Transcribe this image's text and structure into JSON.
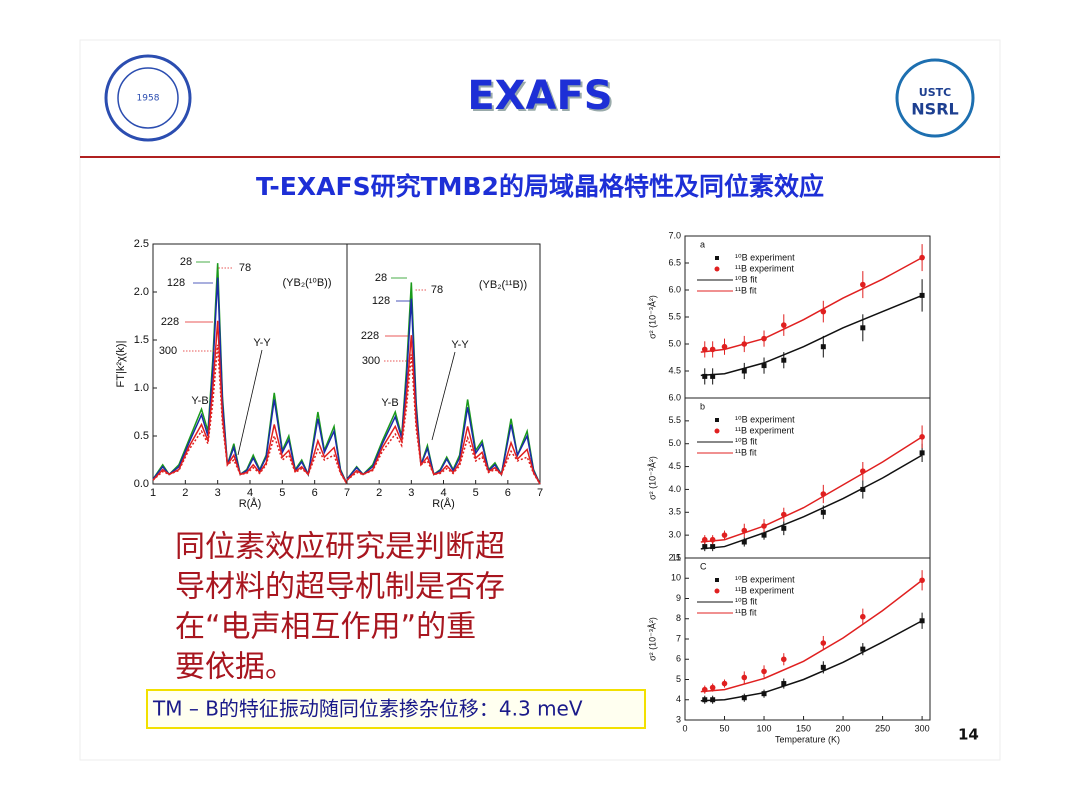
{
  "header": {
    "title": "EXAFS",
    "subtitle": "T-EXAFS研究TMB2的局域晶格特性及同位素效应",
    "logos": [
      "1958",
      "USTC",
      "NSRL"
    ]
  },
  "body": {
    "lines": [
      "同位素效应研究是判断超",
      "导材料的超导机制是否存",
      "在“电声相互作用”的重",
      "要依据。"
    ],
    "callout": "TM – B的特征振动随同位素掺杂位移：4.3 meV",
    "page_number": "14"
  },
  "chart_data": [
    {
      "type": "line",
      "ylabel": "FT|k²χ(k)|",
      "xlabel": "R(Å)",
      "xlim": [
        1,
        7
      ],
      "ylim": [
        0,
        2.5
      ],
      "xticks": [
        1,
        2,
        3,
        4,
        5,
        6,
        7
      ],
      "yticks": [
        {
          "value": 0,
          "label": "0.0"
        },
        0.5,
        {
          "value": 1,
          "label": "1.0"
        },
        1.5,
        {
          "value": 2,
          "label": "2.0"
        },
        2.5
      ],
      "x": [
        1.0,
        1.3,
        1.5,
        1.8,
        2.1,
        2.5,
        2.7,
        2.85,
        3.0,
        3.15,
        3.3,
        3.5,
        3.7,
        3.9,
        4.1,
        4.3,
        4.5,
        4.75,
        5.0,
        5.2,
        5.4,
        5.6,
        5.8,
        6.1,
        6.3,
        6.6,
        6.8,
        7.0
      ],
      "annotations": [
        "28",
        "78",
        "128",
        "228",
        "300",
        "Y-B",
        "Y-Y",
        "(YB₂(¹⁰B))"
      ],
      "series": [
        {
          "color": "#1a9a1a",
          "dash": false,
          "values": [
            0.05,
            0.2,
            0.1,
            0.2,
            0.45,
            0.78,
            0.55,
            1.3,
            2.3,
            0.9,
            0.2,
            0.42,
            0.1,
            0.15,
            0.3,
            0.15,
            0.3,
            0.95,
            0.35,
            0.5,
            0.15,
            0.25,
            0.1,
            0.75,
            0.35,
            0.6,
            0.15,
            0.0
          ]
        },
        {
          "color": "#1a2aa8",
          "dash": false,
          "values": [
            0.05,
            0.18,
            0.1,
            0.18,
            0.42,
            0.72,
            0.5,
            1.2,
            2.15,
            0.85,
            0.2,
            0.38,
            0.1,
            0.14,
            0.27,
            0.14,
            0.28,
            0.88,
            0.33,
            0.46,
            0.14,
            0.23,
            0.1,
            0.68,
            0.33,
            0.55,
            0.14,
            0.0
          ]
        },
        {
          "color": "#e02020",
          "dash": false,
          "values": [
            0.04,
            0.15,
            0.1,
            0.15,
            0.38,
            0.62,
            0.45,
            1.0,
            1.7,
            0.7,
            0.2,
            0.3,
            0.1,
            0.12,
            0.2,
            0.12,
            0.22,
            0.62,
            0.28,
            0.35,
            0.13,
            0.18,
            0.1,
            0.45,
            0.28,
            0.38,
            0.12,
            0.0
          ]
        },
        {
          "color": "#e02020",
          "dash": true,
          "values": [
            0.04,
            0.13,
            0.1,
            0.14,
            0.35,
            0.55,
            0.42,
            0.85,
            1.45,
            0.62,
            0.2,
            0.25,
            0.1,
            0.11,
            0.17,
            0.11,
            0.2,
            0.5,
            0.25,
            0.3,
            0.12,
            0.16,
            0.1,
            0.36,
            0.25,
            0.3,
            0.11,
            0.0
          ]
        }
      ]
    },
    {
      "type": "line",
      "xlabel": "R(Å)",
      "xlim": [
        1,
        7
      ],
      "ylim": [
        0,
        2.5
      ],
      "xticks": [
        2,
        3,
        4,
        5,
        6,
        7
      ],
      "x": [
        1.0,
        1.3,
        1.5,
        1.8,
        2.1,
        2.5,
        2.7,
        2.85,
        3.0,
        3.15,
        3.3,
        3.5,
        3.7,
        3.9,
        4.1,
        4.3,
        4.5,
        4.75,
        5.0,
        5.2,
        5.4,
        5.6,
        5.8,
        6.1,
        6.3,
        6.6,
        6.8,
        7.0
      ],
      "annotations": [
        "28",
        "78",
        "128",
        "228",
        "300",
        "Y-B",
        "Y-Y",
        "(YB₂(¹¹B))"
      ],
      "series": [
        {
          "color": "#1a9a1a",
          "dash": false,
          "values": [
            0.05,
            0.18,
            0.1,
            0.2,
            0.45,
            0.75,
            0.5,
            1.2,
            2.1,
            0.85,
            0.2,
            0.4,
            0.1,
            0.15,
            0.28,
            0.15,
            0.3,
            0.88,
            0.35,
            0.45,
            0.15,
            0.22,
            0.1,
            0.68,
            0.3,
            0.55,
            0.15,
            0.0
          ]
        },
        {
          "color": "#1a2aa8",
          "dash": false,
          "values": [
            0.05,
            0.17,
            0.1,
            0.18,
            0.42,
            0.7,
            0.48,
            1.1,
            1.93,
            0.8,
            0.2,
            0.37,
            0.1,
            0.14,
            0.26,
            0.14,
            0.27,
            0.8,
            0.32,
            0.42,
            0.14,
            0.2,
            0.1,
            0.62,
            0.3,
            0.5,
            0.14,
            0.0
          ]
        },
        {
          "color": "#e02020",
          "dash": false,
          "values": [
            0.04,
            0.14,
            0.1,
            0.15,
            0.38,
            0.6,
            0.44,
            0.92,
            1.55,
            0.66,
            0.2,
            0.28,
            0.1,
            0.12,
            0.19,
            0.12,
            0.22,
            0.6,
            0.27,
            0.33,
            0.13,
            0.17,
            0.1,
            0.43,
            0.26,
            0.36,
            0.12,
            0.0
          ]
        },
        {
          "color": "#e02020",
          "dash": true,
          "values": [
            0.04,
            0.12,
            0.1,
            0.14,
            0.34,
            0.52,
            0.4,
            0.8,
            1.35,
            0.58,
            0.2,
            0.24,
            0.1,
            0.11,
            0.16,
            0.11,
            0.19,
            0.48,
            0.24,
            0.28,
            0.12,
            0.15,
            0.1,
            0.34,
            0.24,
            0.28,
            0.11,
            0.0
          ]
        }
      ]
    },
    {
      "type": "scatter",
      "panel_label": "a",
      "ylabel": "σ² (10⁻³Å²)",
      "legend": "upper left",
      "xlim": [
        0,
        310
      ],
      "ylim": [
        4.0,
        7.0
      ],
      "yticks": [
        4.5,
        {
          "value": 5,
          "label": "5.0"
        },
        5.5,
        {
          "value": 6,
          "label": "6.0"
        },
        6.5,
        {
          "value": 7,
          "label": "7.0"
        }
      ],
      "series": [
        {
          "name": "¹⁰B experiment",
          "mode": "markers",
          "marker": "square",
          "color": "#111111",
          "x": [
            25,
            35,
            75,
            100,
            125,
            175,
            225,
            300
          ],
          "values": [
            4.4,
            4.4,
            4.5,
            4.6,
            4.7,
            4.95,
            5.3,
            5.9
          ],
          "errors": [
            0.15,
            0.15,
            0.15,
            0.15,
            0.15,
            0.2,
            0.25,
            0.3
          ]
        },
        {
          "name": "¹¹B experiment",
          "mode": "markers",
          "marker": "circle",
          "color": "#e02020",
          "x": [
            25,
            35,
            50,
            75,
            100,
            125,
            175,
            225,
            300
          ],
          "values": [
            4.9,
            4.9,
            4.95,
            5.0,
            5.1,
            5.35,
            5.6,
            6.1,
            6.6
          ],
          "errors": [
            0.15,
            0.15,
            0.15,
            0.15,
            0.15,
            0.2,
            0.2,
            0.25,
            0.25
          ]
        },
        {
          "name": "¹⁰B fit",
          "mode": "line",
          "color": "#111111",
          "x": [
            20,
            50,
            100,
            150,
            200,
            250,
            300
          ],
          "values": [
            4.42,
            4.45,
            4.65,
            4.95,
            5.3,
            5.6,
            5.9
          ]
        },
        {
          "name": "¹¹B fit",
          "mode": "line",
          "color": "#e02020",
          "x": [
            20,
            50,
            100,
            150,
            200,
            250,
            300
          ],
          "values": [
            4.85,
            4.9,
            5.1,
            5.45,
            5.85,
            6.2,
            6.6
          ]
        }
      ]
    },
    {
      "type": "scatter",
      "panel_label": "b",
      "ylabel": "σ² (10⁻³Å²)",
      "legend": "upper left",
      "xlim": [
        0,
        310
      ],
      "ylim": [
        2.5,
        6.0
      ],
      "yticks": [
        2.5,
        {
          "value": 3,
          "label": "3.0"
        },
        3.5,
        {
          "value": 4,
          "label": "4.0"
        },
        4.5,
        {
          "value": 5,
          "label": "5.0"
        },
        5.5,
        {
          "value": 6,
          "label": "6.0"
        }
      ],
      "series": [
        {
          "name": "¹⁰B experiment",
          "mode": "markers",
          "marker": "square",
          "color": "#111111",
          "x": [
            25,
            35,
            75,
            100,
            125,
            175,
            225,
            300
          ],
          "values": [
            2.75,
            2.75,
            2.85,
            3.0,
            3.15,
            3.5,
            4.0,
            4.8
          ],
          "errors": [
            0.1,
            0.1,
            0.1,
            0.1,
            0.15,
            0.15,
            0.2,
            0.2
          ]
        },
        {
          "name": "¹¹B experiment",
          "mode": "markers",
          "marker": "circle",
          "color": "#e02020",
          "x": [
            25,
            35,
            50,
            75,
            100,
            125,
            175,
            225,
            300
          ],
          "values": [
            2.9,
            2.9,
            3.0,
            3.1,
            3.2,
            3.45,
            3.9,
            4.4,
            5.15
          ],
          "errors": [
            0.1,
            0.1,
            0.1,
            0.15,
            0.15,
            0.15,
            0.2,
            0.2,
            0.25
          ]
        },
        {
          "name": "¹⁰B fit",
          "mode": "line",
          "color": "#111111",
          "x": [
            20,
            50,
            100,
            150,
            200,
            250,
            300
          ],
          "values": [
            2.7,
            2.75,
            3.05,
            3.4,
            3.8,
            4.25,
            4.75
          ]
        },
        {
          "name": "¹¹B fit",
          "mode": "line",
          "color": "#e02020",
          "x": [
            20,
            50,
            100,
            150,
            200,
            250,
            300
          ],
          "values": [
            2.85,
            2.9,
            3.2,
            3.6,
            4.1,
            4.6,
            5.15
          ]
        }
      ]
    },
    {
      "type": "scatter",
      "panel_label": "C",
      "ylabel": "σ² (10⁻³Å²)",
      "xlabel": "Temperature (K)",
      "legend": "upper left",
      "xlim": [
        0,
        310
      ],
      "ylim": [
        3,
        11
      ],
      "xticks": [
        0,
        50,
        100,
        150,
        200,
        250,
        300
      ],
      "yticks": [
        3,
        4,
        5,
        6,
        7,
        8,
        9,
        10,
        11
      ],
      "series": [
        {
          "name": "¹⁰B experiment",
          "mode": "markers",
          "marker": "square",
          "color": "#111111",
          "x": [
            25,
            35,
            75,
            100,
            125,
            175,
            225,
            300
          ],
          "values": [
            4.0,
            4.0,
            4.1,
            4.3,
            4.8,
            5.6,
            6.5,
            7.9
          ],
          "errors": [
            0.2,
            0.2,
            0.2,
            0.2,
            0.25,
            0.3,
            0.3,
            0.4
          ]
        },
        {
          "name": "¹¹B experiment",
          "mode": "markers",
          "marker": "circle",
          "color": "#e02020",
          "x": [
            25,
            35,
            50,
            75,
            100,
            125,
            175,
            225,
            300
          ],
          "values": [
            4.5,
            4.6,
            4.8,
            5.1,
            5.4,
            6.0,
            6.8,
            8.1,
            9.9
          ],
          "errors": [
            0.2,
            0.2,
            0.2,
            0.3,
            0.3,
            0.3,
            0.35,
            0.4,
            0.5
          ]
        },
        {
          "name": "¹⁰B fit",
          "mode": "line",
          "color": "#111111",
          "x": [
            20,
            50,
            100,
            150,
            200,
            250,
            300
          ],
          "values": [
            3.95,
            4.0,
            4.35,
            5.0,
            5.85,
            6.85,
            7.9
          ]
        },
        {
          "name": "¹¹B fit",
          "mode": "line",
          "color": "#e02020",
          "x": [
            20,
            50,
            100,
            150,
            200,
            250,
            300
          ],
          "values": [
            4.4,
            4.5,
            5.05,
            5.9,
            7.05,
            8.4,
            9.9
          ]
        }
      ]
    }
  ]
}
